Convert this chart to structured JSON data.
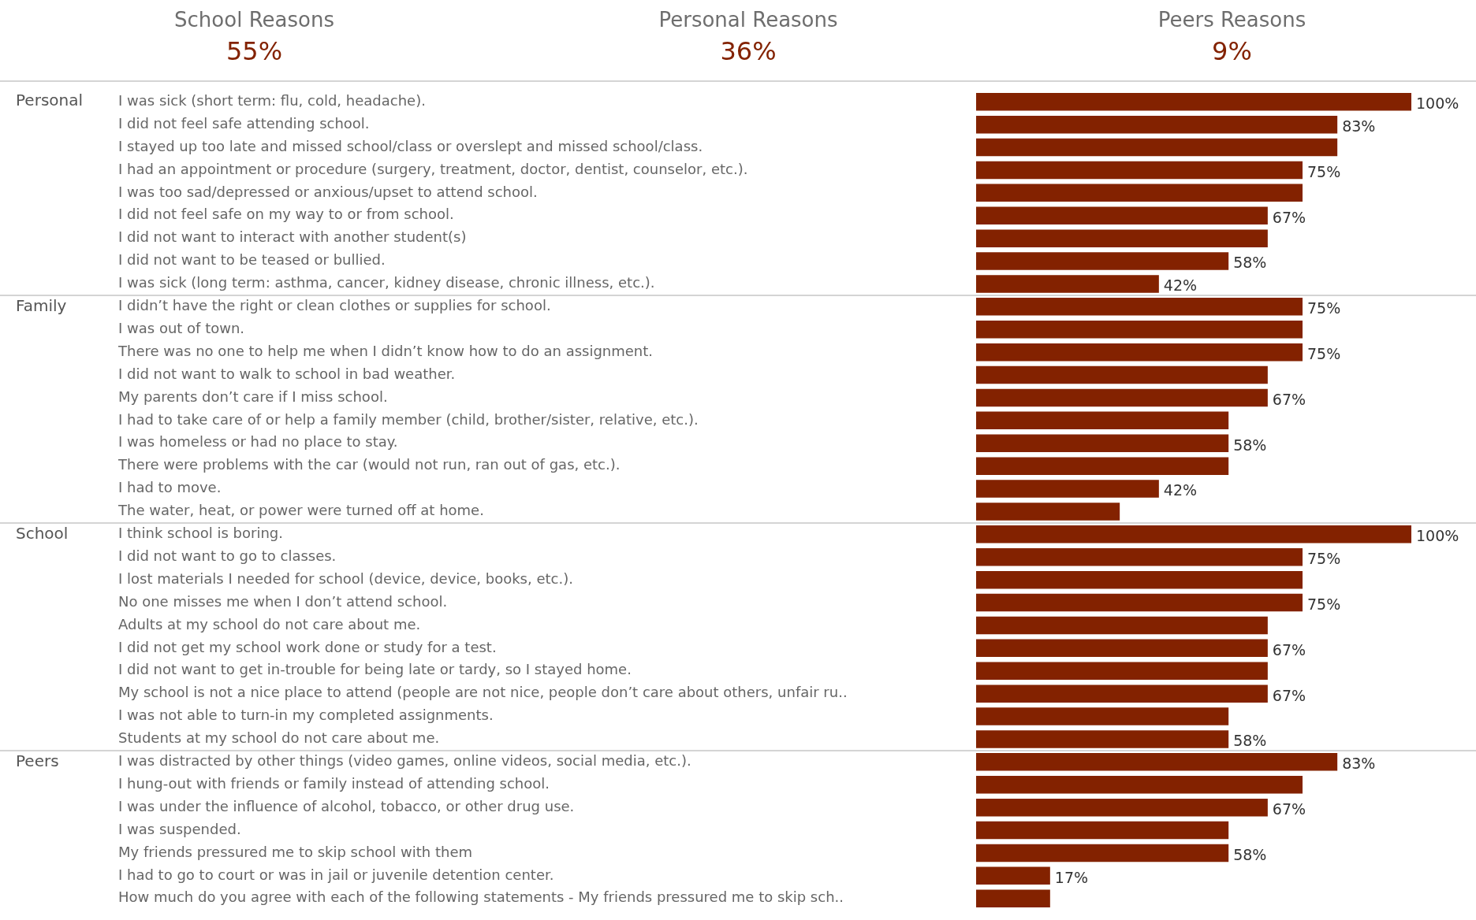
{
  "chart_data": {
    "type": "bar",
    "orientation": "horizontal",
    "color": "#832200",
    "grid": false,
    "legend": false,
    "categories": [
      "I was sick (short term: flu, cold, headache).",
      "I did not feel safe attending school.",
      "I stayed up too late and missed school/class or overslept and missed school/class.",
      "I had an appointment or procedure (surgery, treatment, doctor, dentist, counselor, etc.).",
      "I was too sad/depressed or anxious/upset to attend school.",
      "I did not feel safe on my way to or from school.",
      "I did not want to interact with another student(s)",
      "I did not want to be teased or bullied.",
      "I was sick (long term: asthma, cancer, kidney disease, chronic illness, etc.).",
      "I didn’t have the right or clean clothes or supplies for school.",
      "I was out of town.",
      "There was no one to help me when I didn’t know how to do an assignment.",
      "I did not want to walk to school in bad weather.",
      "My parents don’t care if I miss school.",
      "I had to take care of or help a family member (child, brother/sister, relative, etc.).",
      "I was homeless or had no place to stay.",
      "There were problems with the car (would not run, ran out of gas, etc.).",
      "I had to move.",
      "The water, heat, or power were turned off at home.",
      "I think school is boring.",
      "I did not want to go to classes.",
      "I lost materials I needed for school (device, device, books, etc.).",
      "No one misses me when I don’t attend school.",
      "Adults at my school do not care about me.",
      "I did not get my school work done or study for a test.",
      "I did not want to get in-trouble for being late or tardy, so I stayed home.",
      "My school is not a nice place to attend (people are not nice, people don’t care about others, unfair ru..",
      "I was not able to turn-in my completed assignments.",
      "Students at my school do not care about me.",
      "I was distracted by other things (video games, online videos, social media, etc.).",
      "I hung-out with friends or family instead of attending school.",
      "I was under the influence of alcohol, tobacco, or other drug use.",
      "I was suspended.",
      "My friends pressured me to skip school with them",
      "I had to go to court or was in jail or juvenile detention center.",
      "How much do you agree with each of the following statements - My friends pressured me to skip sch.."
    ],
    "values": [
      100,
      83,
      83,
      75,
      75,
      67,
      67,
      58,
      42,
      75,
      75,
      75,
      67,
      67,
      58,
      58,
      58,
      42,
      33,
      100,
      75,
      75,
      75,
      67,
      67,
      67,
      67,
      58,
      58,
      83,
      75,
      67,
      58,
      58,
      17,
      17
    ],
    "value_labels": [
      "100%",
      "83%",
      null,
      "75%",
      null,
      "67%",
      null,
      "58%",
      "42%",
      "75%",
      null,
      "75%",
      null,
      "67%",
      null,
      "58%",
      null,
      "42%",
      null,
      "100%",
      "75%",
      null,
      "75%",
      null,
      "67%",
      null,
      "67%",
      null,
      "58%",
      "83%",
      null,
      "67%",
      null,
      "58%",
      "17%",
      null
    ],
    "annotations": [
      "School Reasons",
      "55%",
      "Personal Reasons",
      "36%",
      "Peers Reasons",
      "9%",
      "Personal",
      "Family",
      "School",
      "Peers"
    ]
  }
}
